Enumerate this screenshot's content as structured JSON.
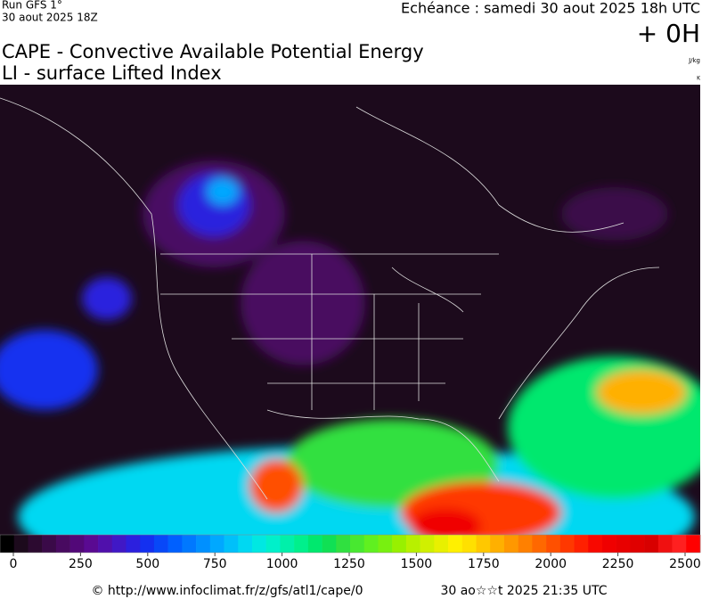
{
  "header": {
    "run": "Run GFS 1°",
    "run_date": "30 aout 2025 18Z",
    "forecast": "Echéance : samedi 30 aout 2025 18h UTC",
    "lead": "+ 0H",
    "title1": "CAPE - Convective Available Potential Energy",
    "title2": "LI - surface Lifted Index",
    "unit1": "J/kg",
    "unit2": "K"
  },
  "colorbar": {
    "ticks": [
      0,
      250,
      500,
      750,
      1000,
      1250,
      1500,
      1750,
      2000,
      2250,
      2500
    ],
    "colors": [
      "#000000",
      "#1c0a1c",
      "#2c0a30",
      "#3a0a48",
      "#480a60",
      "#520878",
      "#5a0a92",
      "#5010ac",
      "#4018c6",
      "#2c20de",
      "#1430f0",
      "#0848f8",
      "#0060ff",
      "#0078ff",
      "#0090ff",
      "#00a8ff",
      "#00c0fa",
      "#00d8f2",
      "#00e8e2",
      "#00f0ca",
      "#00f0aa",
      "#00f08c",
      "#00e86e",
      "#10e054",
      "#30e040",
      "#48e830",
      "#60f020",
      "#78f010",
      "#98f000",
      "#b8f000",
      "#d0f000",
      "#e8f000",
      "#fff000",
      "#ffe000",
      "#ffc800",
      "#ffb000",
      "#ff9800",
      "#ff8000",
      "#ff6800",
      "#ff5000",
      "#ff3800",
      "#ff2000",
      "#f80800",
      "#f00000",
      "#e80000",
      "#e00000",
      "#d80000",
      "#f01010",
      "#ff2020",
      "#ff0000"
    ]
  },
  "footer": {
    "source": "© http://www.infoclimat.fr/z/gfs/atl1/cape/0",
    "generated": "30 ao☆☆t 2025 21:35 UTC"
  }
}
